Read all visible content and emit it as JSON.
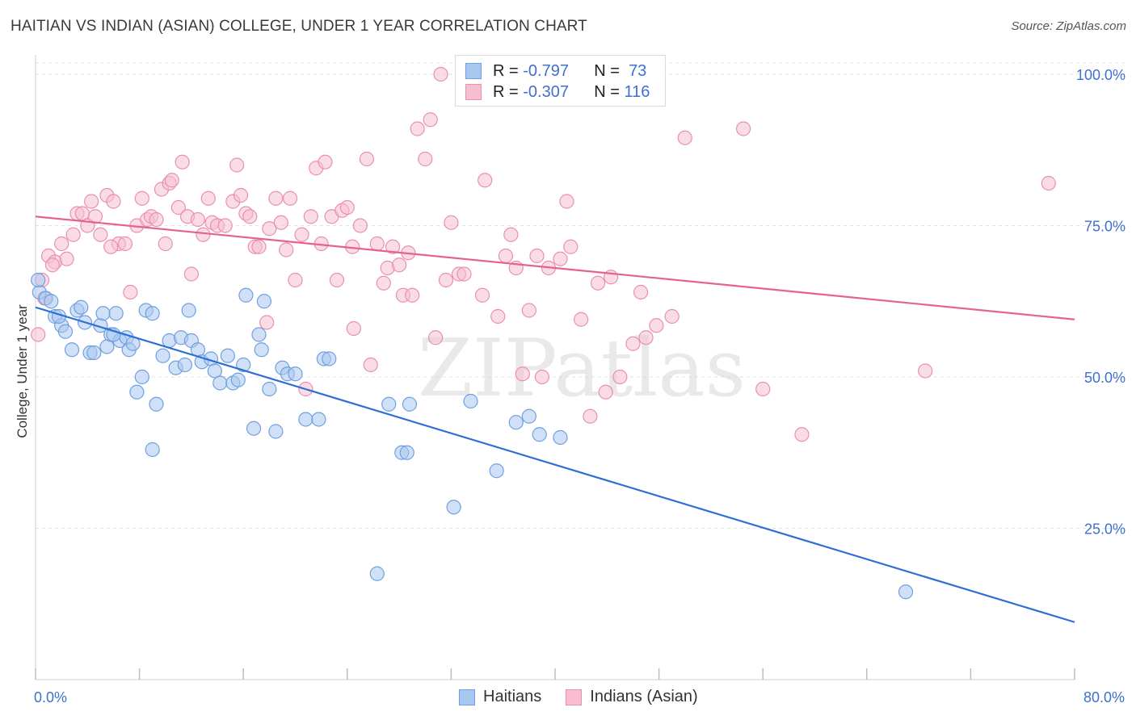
{
  "title": "HAITIAN VS INDIAN (ASIAN) COLLEGE, UNDER 1 YEAR CORRELATION CHART",
  "source": "Source: ZipAtlas.com",
  "watermark": "ZIPatlas",
  "legend": {
    "rows": [
      {
        "r_label": "R =",
        "r_value": "-0.797",
        "n_label": "N =",
        "n_value": "73"
      },
      {
        "r_label": "R =",
        "r_value": "-0.307",
        "n_label": "N =",
        "n_value": "116"
      }
    ]
  },
  "bottom_legend": [
    "Haitians",
    "Indians (Asian)"
  ],
  "colors": {
    "haitian_fill": "#a9c8f0",
    "haitian_stroke": "#6f9fe0",
    "haitian_line": "#2e6fd6",
    "indian_fill": "#f6bfd0",
    "indian_stroke": "#ea8fae",
    "indian_line": "#e5628f",
    "tick": "#3f6fcf",
    "grid": "#e2e2e2"
  },
  "chart_data": {
    "type": "scatter",
    "title": "HAITIAN VS INDIAN (ASIAN) COLLEGE, UNDER 1 YEAR CORRELATION CHART",
    "xlabel": "",
    "ylabel": "College, Under 1 year",
    "xlim": [
      0,
      80
    ],
    "ylim": [
      0,
      104
    ],
    "x_tick_labels": [
      {
        "value": 0,
        "label": "0.0%"
      },
      {
        "value": 80,
        "label": "80.0%"
      }
    ],
    "y_tick_labels": [
      {
        "value": 25,
        "label": "25.0%"
      },
      {
        "value": 50,
        "label": "50.0%"
      },
      {
        "value": 75,
        "label": "75.0%"
      },
      {
        "value": 100,
        "label": "100.0%"
      }
    ],
    "series": [
      {
        "name": "Haitians",
        "r": -0.797,
        "n": 73,
        "trend": [
          [
            0,
            61.5
          ],
          [
            80,
            9.5
          ]
        ],
        "points": [
          [
            0.3,
            64
          ],
          [
            0.8,
            63
          ],
          [
            1.2,
            62.5
          ],
          [
            1.5,
            60
          ],
          [
            2.0,
            58.5
          ],
          [
            2.3,
            57.5
          ],
          [
            2.8,
            54.5
          ],
          [
            3.2,
            61
          ],
          [
            3.5,
            61.5
          ],
          [
            3.8,
            59
          ],
          [
            4.2,
            54
          ],
          [
            4.5,
            54
          ],
          [
            5.0,
            58.5
          ],
          [
            5.2,
            60.5
          ],
          [
            5.5,
            55
          ],
          [
            5.8,
            57
          ],
          [
            6.2,
            60.5
          ],
          [
            6.5,
            56
          ],
          [
            7.0,
            56.5
          ],
          [
            7.2,
            54.5
          ],
          [
            7.5,
            55.5
          ],
          [
            7.8,
            47.5
          ],
          [
            8.2,
            50
          ],
          [
            8.5,
            61
          ],
          [
            9.0,
            60.5
          ],
          [
            9.3,
            45.5
          ],
          [
            9.8,
            53.5
          ],
          [
            10.3,
            56
          ],
          [
            10.8,
            51.5
          ],
          [
            11.2,
            56.5
          ],
          [
            11.5,
            52
          ],
          [
            11.8,
            61
          ],
          [
            12.0,
            56
          ],
          [
            12.5,
            54.5
          ],
          [
            12.8,
            52.5
          ],
          [
            13.5,
            53
          ],
          [
            13.8,
            51
          ],
          [
            14.2,
            49
          ],
          [
            14.8,
            53.5
          ],
          [
            15.2,
            49
          ],
          [
            15.6,
            49.5
          ],
          [
            16.0,
            52
          ],
          [
            16.2,
            63.5
          ],
          [
            16.8,
            41.5
          ],
          [
            17.2,
            57
          ],
          [
            17.4,
            54.5
          ],
          [
            17.6,
            62.5
          ],
          [
            18.0,
            48
          ],
          [
            18.5,
            41
          ],
          [
            19.0,
            51.5
          ],
          [
            19.4,
            50.5
          ],
          [
            20.0,
            50.5
          ],
          [
            20.8,
            43
          ],
          [
            21.8,
            43
          ],
          [
            22.2,
            53
          ],
          [
            22.6,
            53
          ],
          [
            27.2,
            45.5
          ],
          [
            28.2,
            37.5
          ],
          [
            28.6,
            37.5
          ],
          [
            28.8,
            45.5
          ],
          [
            32.2,
            28.5
          ],
          [
            33.5,
            46
          ],
          [
            35.5,
            34.5
          ],
          [
            37.0,
            42.5
          ],
          [
            38.0,
            43.5
          ],
          [
            38.8,
            40.5
          ],
          [
            40.4,
            40
          ],
          [
            26.3,
            17.5
          ],
          [
            67.0,
            14.5
          ],
          [
            0.2,
            66
          ],
          [
            1.8,
            60
          ],
          [
            6.0,
            57
          ],
          [
            9.0,
            38
          ]
        ]
      },
      {
        "name": "Indians (Asian)",
        "r": -0.307,
        "n": 116,
        "trend": [
          [
            0,
            76.5
          ],
          [
            80,
            59.5
          ]
        ],
        "points": [
          [
            0.2,
            57
          ],
          [
            0.5,
            66
          ],
          [
            0.7,
            63
          ],
          [
            1.0,
            70
          ],
          [
            1.5,
            69
          ],
          [
            2.0,
            72
          ],
          [
            2.4,
            69.5
          ],
          [
            2.9,
            73.5
          ],
          [
            3.2,
            77
          ],
          [
            3.6,
            77
          ],
          [
            4.0,
            75
          ],
          [
            4.3,
            79
          ],
          [
            4.6,
            76.5
          ],
          [
            5.0,
            73.5
          ],
          [
            5.5,
            80
          ],
          [
            6.0,
            79
          ],
          [
            6.4,
            72
          ],
          [
            6.9,
            72
          ],
          [
            7.3,
            64
          ],
          [
            7.8,
            75
          ],
          [
            8.2,
            79.5
          ],
          [
            8.6,
            76
          ],
          [
            8.9,
            76.5
          ],
          [
            9.3,
            76
          ],
          [
            9.7,
            81
          ],
          [
            10.0,
            72
          ],
          [
            10.3,
            82
          ],
          [
            10.5,
            82.5
          ],
          [
            11.0,
            78
          ],
          [
            11.3,
            85.5
          ],
          [
            11.7,
            76.5
          ],
          [
            12.0,
            67
          ],
          [
            12.5,
            76
          ],
          [
            12.9,
            73.5
          ],
          [
            13.3,
            79.5
          ],
          [
            13.6,
            75.5
          ],
          [
            14.0,
            75
          ],
          [
            14.6,
            75
          ],
          [
            15.2,
            79
          ],
          [
            15.5,
            85
          ],
          [
            15.8,
            80
          ],
          [
            16.2,
            77
          ],
          [
            16.5,
            76.5
          ],
          [
            16.9,
            71.5
          ],
          [
            17.2,
            71.5
          ],
          [
            17.8,
            59
          ],
          [
            18.0,
            74.5
          ],
          [
            18.5,
            79.5
          ],
          [
            18.9,
            75.5
          ],
          [
            19.3,
            71
          ],
          [
            19.6,
            79.5
          ],
          [
            20.0,
            66
          ],
          [
            20.5,
            73.5
          ],
          [
            20.8,
            48
          ],
          [
            21.2,
            76.5
          ],
          [
            21.6,
            84.5
          ],
          [
            22.0,
            72
          ],
          [
            22.3,
            85.5
          ],
          [
            22.8,
            76.5
          ],
          [
            23.2,
            66
          ],
          [
            23.6,
            77.5
          ],
          [
            24.0,
            78
          ],
          [
            24.5,
            58
          ],
          [
            25.0,
            75
          ],
          [
            25.5,
            86
          ],
          [
            25.8,
            52
          ],
          [
            26.3,
            72
          ],
          [
            26.8,
            65.5
          ],
          [
            27.1,
            68
          ],
          [
            27.5,
            71.5
          ],
          [
            28.0,
            68.5
          ],
          [
            28.3,
            63.5
          ],
          [
            28.7,
            70.5
          ],
          [
            29.0,
            63.5
          ],
          [
            29.4,
            91
          ],
          [
            30.0,
            86
          ],
          [
            30.4,
            92.5
          ],
          [
            30.8,
            56.5
          ],
          [
            31.2,
            100
          ],
          [
            31.6,
            66
          ],
          [
            32.0,
            75.5
          ],
          [
            32.6,
            67
          ],
          [
            33.0,
            67
          ],
          [
            34.4,
            63.5
          ],
          [
            34.6,
            82.5
          ],
          [
            35.6,
            60
          ],
          [
            36.2,
            70
          ],
          [
            36.6,
            73.5
          ],
          [
            37.0,
            68
          ],
          [
            37.5,
            50.5
          ],
          [
            38.0,
            61
          ],
          [
            38.6,
            70
          ],
          [
            39.0,
            50
          ],
          [
            39.5,
            68
          ],
          [
            40.4,
            69.5
          ],
          [
            40.9,
            79
          ],
          [
            41.2,
            71.5
          ],
          [
            42.0,
            59.5
          ],
          [
            42.7,
            43.5
          ],
          [
            43.3,
            65.5
          ],
          [
            43.9,
            47.5
          ],
          [
            44.3,
            66.5
          ],
          [
            45.0,
            50
          ],
          [
            46.0,
            55.5
          ],
          [
            46.6,
            64
          ],
          [
            47.0,
            56.5
          ],
          [
            47.8,
            58.5
          ],
          [
            49.0,
            60
          ],
          [
            50.0,
            89.5
          ],
          [
            54.5,
            91
          ],
          [
            56.0,
            48
          ],
          [
            59.0,
            40.5
          ],
          [
            68.5,
            51
          ],
          [
            78.0,
            82
          ],
          [
            1.3,
            68.5
          ],
          [
            5.8,
            71.5
          ],
          [
            24.4,
            71.5
          ]
        ]
      }
    ]
  }
}
